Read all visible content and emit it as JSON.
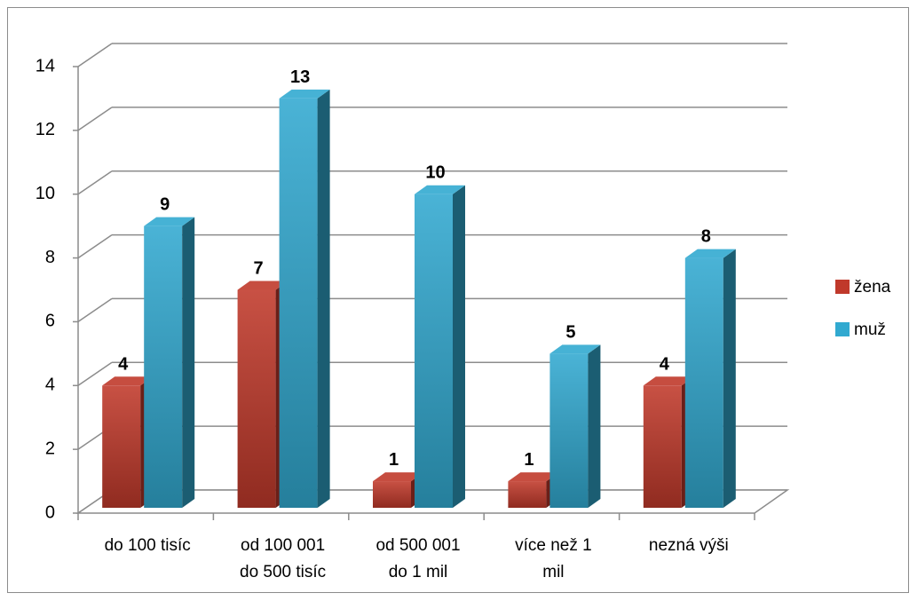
{
  "chart_data": {
    "type": "bar",
    "title": "",
    "xlabel": "",
    "ylabel": "",
    "categories": [
      [
        "do 100 tisíc"
      ],
      [
        "od 100 001",
        "do 500 tisíc"
      ],
      [
        "od 500 001",
        "do 1 mil"
      ],
      [
        "více než 1",
        "mil"
      ],
      [
        "nezná výši"
      ]
    ],
    "series": [
      {
        "name": "žena",
        "values": [
          4,
          7,
          1,
          1,
          4
        ],
        "color": "#c0392b"
      },
      {
        "name": "muž",
        "values": [
          9,
          13,
          10,
          5,
          8
        ],
        "color": "#31a9d0"
      }
    ],
    "ylim": [
      0,
      14
    ],
    "yticks": [
      0,
      2,
      4,
      6,
      8,
      10,
      12,
      14
    ],
    "grid": true,
    "legend": "right",
    "style": "3d-column"
  }
}
